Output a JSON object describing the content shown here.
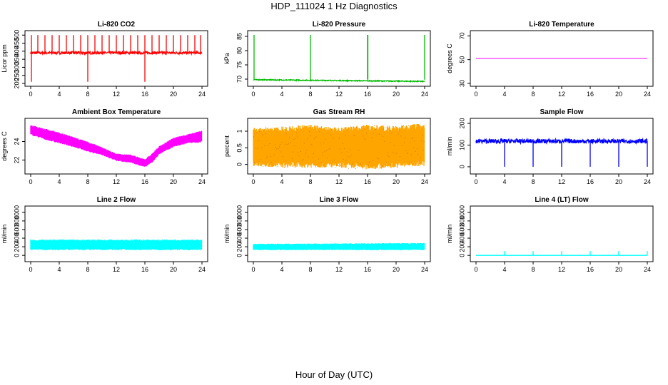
{
  "figure": {
    "title": "HDP_111024  1 Hz Diagnostics",
    "xlabel": "Hour of Day (UTC)"
  },
  "chart_data": [
    {
      "type": "line",
      "title": "Li-820 CO2",
      "ylabel": "Licor ppm",
      "color": "#ff0000",
      "xlim": [
        0,
        24
      ],
      "ylim": [
        200,
        510
      ],
      "yticks": [
        200,
        250,
        300,
        350,
        400,
        450,
        500
      ],
      "xticks": [
        0,
        4,
        8,
        12,
        16,
        20,
        24
      ],
      "base": 390,
      "noise": 8,
      "spikes_up": [
        0.1,
        1.0,
        2.0,
        3.0,
        4.0,
        5.0,
        6.0,
        7.0,
        8.0,
        9.0,
        10.0,
        11.0,
        12.0,
        13.0,
        14.0,
        15.0,
        16.0,
        17.0,
        18.0,
        19.0,
        20.0,
        21.0,
        22.0,
        23.0,
        23.8
      ],
      "spike_up_value": 500,
      "spikes_down": [
        0.1,
        8.0,
        16.0
      ],
      "spike_down_value": 210
    },
    {
      "type": "line",
      "title": "Li-820 Pressure",
      "ylabel": "kPa",
      "color": "#00bb00",
      "xlim": [
        0,
        24
      ],
      "ylim": [
        68.5,
        86
      ],
      "yticks": [
        70,
        75,
        80,
        85
      ],
      "xticks": [
        0,
        4,
        8,
        12,
        16,
        20,
        24
      ],
      "start": 69.8,
      "end": 69.2,
      "noise": 0.15,
      "spikes_up": [
        0.1,
        8.0,
        16.0,
        16.05,
        24.0
      ],
      "spike_up_value": 85.5
    },
    {
      "type": "line",
      "title": "Li-820 Temperature",
      "ylabel": "degrees C",
      "color": "#ff00ff",
      "xlim": [
        0,
        24
      ],
      "ylim": [
        30,
        72
      ],
      "yticks": [
        30,
        50,
        70
      ],
      "xticks": [
        0,
        4,
        8,
        12,
        16,
        20,
        24
      ],
      "value": 51
    },
    {
      "type": "band",
      "title": "Ambient Box Temperature",
      "ylabel": "degrees C",
      "color": "#ff00ff",
      "xlim": [
        0,
        24
      ],
      "ylim": [
        20.8,
        26.2
      ],
      "yticks": [
        22,
        24
      ],
      "xticks": [
        0,
        4,
        8,
        12,
        16,
        20,
        24
      ],
      "x": [
        0,
        2,
        4,
        6,
        8,
        10,
        12,
        14,
        16,
        17,
        18,
        20,
        22,
        24
      ],
      "low": [
        24.7,
        24.2,
        23.8,
        23.4,
        22.9,
        22.5,
        21.9,
        21.7,
        21.2,
        21.7,
        22.6,
        23.4,
        23.8,
        23.9
      ],
      "high": [
        25.8,
        25.4,
        25.0,
        24.5,
        24.0,
        23.4,
        22.7,
        22.6,
        22.1,
        22.7,
        23.5,
        24.4,
        24.8,
        25.2
      ]
    },
    {
      "type": "band",
      "title": "Gas Stream RH",
      "ylabel": "percent",
      "color": "#ffa500",
      "xlim": [
        0,
        24
      ],
      "ylim": [
        -0.2,
        1.3
      ],
      "yticks": [
        0.0,
        0.5,
        1.0
      ],
      "xticks": [
        0,
        4,
        8,
        12,
        16,
        20,
        24
      ],
      "x": [
        0,
        4,
        8,
        12,
        16,
        20,
        24
      ],
      "low": [
        -0.05,
        -0.1,
        -0.1,
        -0.1,
        -0.15,
        -0.1,
        -0.05
      ],
      "high": [
        1.1,
        1.15,
        1.2,
        1.1,
        1.2,
        1.15,
        1.25
      ]
    },
    {
      "type": "line",
      "title": "Sample Flow",
      "ylabel": "ml/min",
      "color": "#0000ff",
      "xlim": [
        0,
        24
      ],
      "ylim": [
        -20,
        210
      ],
      "yticks": [
        0,
        100,
        200
      ],
      "xticks": [
        0,
        4,
        8,
        12,
        16,
        20,
        24
      ],
      "base": 118,
      "noise": 10,
      "spikes_down": [
        4.0,
        8.0,
        12.0,
        16.0,
        20.0,
        24.0
      ],
      "spike_down_value": 0
    },
    {
      "type": "band",
      "title": "Line 2 Flow",
      "ylabel": "ml/min",
      "color": "#00ffff",
      "xlim": [
        0,
        24
      ],
      "ylim": [
        -80,
        1080
      ],
      "yticks": [
        0,
        200,
        400,
        600,
        800,
        1000
      ],
      "xticks": [
        0,
        4,
        8,
        12,
        16,
        20,
        24
      ],
      "x": [
        0,
        24
      ],
      "low": [
        120,
        120
      ],
      "high": [
        370,
        370
      ],
      "gaps": [
        4.0,
        8.0,
        12.0,
        16.0,
        20.0
      ]
    },
    {
      "type": "band",
      "title": "Line 3 Flow",
      "ylabel": "ml/min",
      "color": "#00ffff",
      "xlim": [
        0,
        24
      ],
      "ylim": [
        -80,
        1080
      ],
      "yticks": [
        0,
        200,
        400,
        600,
        800,
        1000
      ],
      "xticks": [
        0,
        4,
        8,
        12,
        16,
        20,
        24
      ],
      "x": [
        0,
        24
      ],
      "low": [
        120,
        120
      ],
      "high": [
        270,
        290
      ],
      "gaps": [
        4.0,
        8.0,
        12.0,
        16.0,
        20.0
      ]
    },
    {
      "type": "line",
      "title": "Line 4 (LT) Flow",
      "ylabel": "ml/min",
      "color": "#00ffff",
      "xlim": [
        0,
        24
      ],
      "ylim": [
        -80,
        1080
      ],
      "yticks": [
        0,
        200,
        400,
        600,
        800,
        1000
      ],
      "xticks": [
        0,
        4,
        8,
        12,
        16,
        20,
        24
      ],
      "base": 0,
      "noise": 0,
      "spikes_up": [
        4.0,
        8.0,
        12.0,
        16.0,
        20.0,
        24.0
      ],
      "spike_up_value": 100
    }
  ]
}
